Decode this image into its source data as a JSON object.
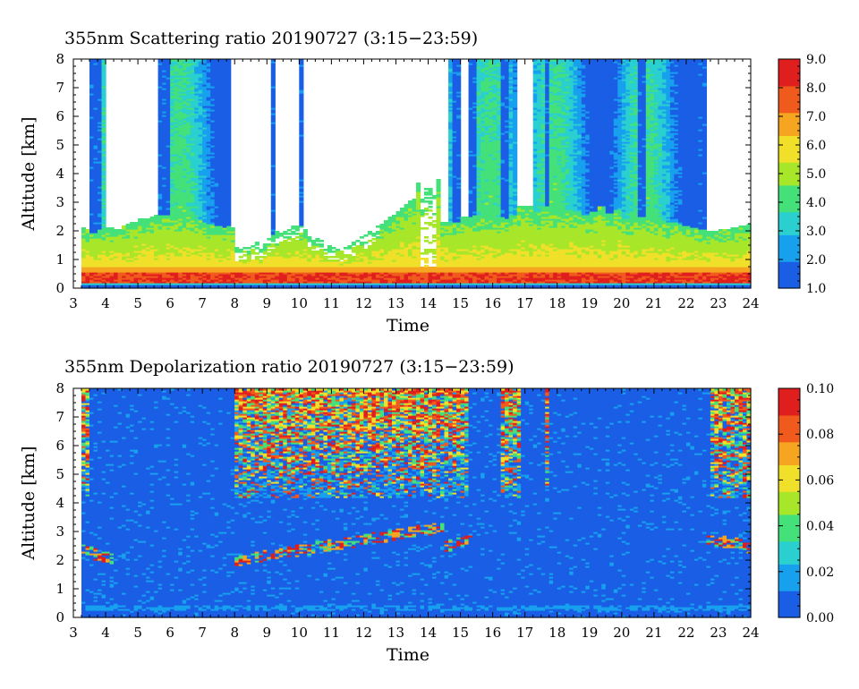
{
  "colormap": [
    "#1a5ee6",
    "#17a0ee",
    "#2ad0d0",
    "#44e07a",
    "#a8e62a",
    "#f0e02a",
    "#f5a51f",
    "#f05a1c",
    "#e01e1e"
  ],
  "chart_data": [
    {
      "type": "heatmap",
      "title": "355nm Scattering ratio  20190727 (3:15−23:59)",
      "xlabel": "Time",
      "ylabel": "Altitude [km]",
      "xlim": [
        3,
        24
      ],
      "ylim": [
        0,
        8
      ],
      "x_ticks": [
        "3",
        "4",
        "5",
        "6",
        "7",
        "8",
        "9",
        "10",
        "11",
        "12",
        "13",
        "14",
        "15",
        "16",
        "17",
        "18",
        "19",
        "20",
        "21",
        "22",
        "23",
        "24"
      ],
      "y_ticks": [
        "0",
        "1",
        "2",
        "3",
        "4",
        "5",
        "6",
        "7",
        "8"
      ],
      "colorbar": {
        "min": 1.0,
        "max": 9.0,
        "ticks": [
          "1.0",
          "2.0",
          "3.0",
          "4.0",
          "5.0",
          "6.0",
          "7.0",
          "8.0",
          "9.0"
        ]
      },
      "time_range": {
        "start": 3.25,
        "end": 23.98
      },
      "features": {
        "surface_layer_km": [
          0.2,
          0.6
        ],
        "boundary_layer_top_km": 2.2,
        "cloud_top_km_near_14h": 3.8,
        "high_value_columns_h": [
          3.7,
          5.8,
          9.2,
          10.0,
          14.9,
          15.4,
          16.4,
          17.7,
          20.5,
          22.5
        ]
      }
    },
    {
      "type": "heatmap",
      "title": "355nm Depolarization ratio  20190727 (3:15−23:59)",
      "xlabel": "Time",
      "ylabel": "Altitude [km]",
      "xlim": [
        3,
        24
      ],
      "ylim": [
        0,
        8
      ],
      "x_ticks": [
        "3",
        "4",
        "5",
        "6",
        "7",
        "8",
        "9",
        "10",
        "11",
        "12",
        "13",
        "14",
        "15",
        "16",
        "17",
        "18",
        "19",
        "20",
        "21",
        "22",
        "23",
        "24"
      ],
      "y_ticks": [
        "0",
        "1",
        "2",
        "3",
        "4",
        "5",
        "6",
        "7",
        "8"
      ],
      "colorbar": {
        "min": 0.0,
        "max": 0.1,
        "ticks": [
          "0.00",
          "0.02",
          "0.04",
          "0.06",
          "0.08",
          "0.10"
        ]
      },
      "time_range": {
        "start": 3.25,
        "end": 23.98
      },
      "features": {
        "background_value": 0.01,
        "cloud_base_km": [
          2.0,
          3.0
        ],
        "high_depol_region_h": [
          8.0,
          15.3
        ],
        "high_depol_region_km": [
          4.0,
          8.0
        ]
      }
    }
  ]
}
